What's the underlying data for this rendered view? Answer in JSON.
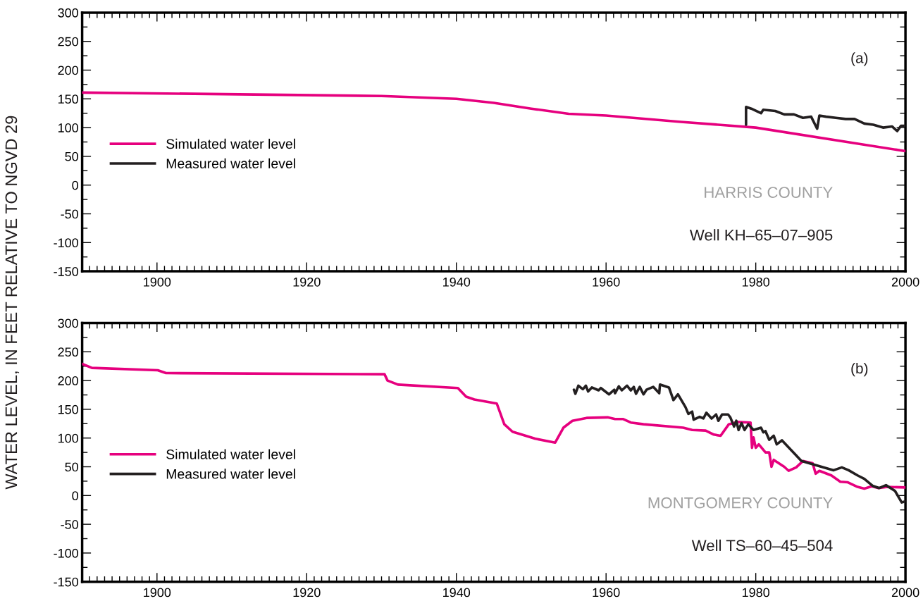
{
  "chart_data": [
    {
      "type": "line",
      "ylabel": "WATER LEVEL, IN FEET RELATIVE TO NGVD 29",
      "xlim": [
        1890,
        2000
      ],
      "xticks": [
        1900,
        1920,
        1940,
        1960,
        1980,
        2000
      ],
      "ylim": [
        -150,
        300
      ],
      "yticks": [
        -150,
        -100,
        -50,
        0,
        50,
        100,
        150,
        200,
        250,
        300
      ],
      "legend": "center left",
      "grid": false,
      "annotations": [
        "(a)",
        "HARRIS COUNTY",
        "Well KH–65–07–905"
      ],
      "series": [
        {
          "name": "Simulated water level",
          "color": "#e6007e",
          "x": [
            1890,
            1930,
            1940,
            1945,
            1950,
            1955,
            1960,
            1970,
            1980,
            2000
          ],
          "values": [
            161,
            155,
            150,
            143,
            133,
            124,
            121,
            110,
            100,
            59
          ]
        },
        {
          "name": "Measured water level",
          "color": "#231f20",
          "x": [
            1978.7,
            1978.7,
            1979.4,
            1980.7,
            1981.0,
            1982.6,
            1983.8,
            1985.1,
            1986.3,
            1987.4,
            1988.2,
            1988.5,
            1989.4,
            1990.7,
            1992.0,
            1993.2,
            1994.5,
            1995.7,
            1997.0,
            1998.2,
            1998.9,
            1999.4,
            2000
          ],
          "values": [
            105,
            136,
            133,
            125,
            131,
            129,
            123,
            123,
            117,
            119,
            98,
            121,
            119,
            117,
            115,
            115,
            107,
            105,
            100,
            102,
            94,
            103,
            103
          ]
        }
      ]
    },
    {
      "type": "line",
      "xlim": [
        1890,
        2000
      ],
      "xticks": [
        1900,
        1920,
        1940,
        1960,
        1980,
        2000
      ],
      "ylim": [
        -150,
        300
      ],
      "yticks": [
        -150,
        -100,
        -50,
        0,
        50,
        100,
        150,
        200,
        250,
        300
      ],
      "legend": "center left",
      "grid": false,
      "annotations": [
        "(b)",
        "MONTGOMERY COUNTY",
        "Well TS–60–45–504"
      ],
      "series": [
        {
          "name": "Simulated water level",
          "color": "#e6007e",
          "x": [
            1890.0,
            1891.3,
            1900.1,
            1901.2,
            1930.4,
            1930.8,
            1932.2,
            1940.2,
            1941.3,
            1942.4,
            1945.4,
            1946.4,
            1947.5,
            1950.5,
            1953.2,
            1954.3,
            1955.5,
            1957.4,
            1960.2,
            1961.2,
            1962.3,
            1963.3,
            1965.0,
            1970.3,
            1971.5,
            1973.3,
            1974.4,
            1975.3,
            1976.4,
            1977.6,
            1979.3,
            1979.5,
            1979.7,
            1980.0,
            1980.4,
            1981.3,
            1981.8,
            1982.1,
            1982.4,
            1983.8,
            1984.4,
            1985.4,
            1986.3,
            1987.6,
            1988.0,
            1988.5,
            1990.1,
            1991.3,
            1992.3,
            1993.6,
            1994.5,
            1995.5,
            1996.4,
            1997.6,
            2000
          ],
          "values": [
            229,
            222,
            218,
            213,
            211,
            200,
            193,
            187,
            172,
            167,
            160,
            124,
            111,
            99,
            92,
            118,
            130,
            135,
            136,
            133,
            133,
            127,
            124,
            118,
            114,
            113,
            106,
            104,
            124,
            128,
            127,
            83,
            101,
            83,
            89,
            75,
            75,
            50,
            62,
            50,
            43,
            49,
            60,
            56,
            38,
            43,
            35,
            24,
            23,
            15,
            12,
            16,
            13,
            15,
            14
          ]
        },
        {
          "name": "Measured water level",
          "color": "#231f20",
          "x": [
            1955.7,
            1955.9,
            1956.3,
            1956.9,
            1957.3,
            1957.6,
            1958.1,
            1959.0,
            1959.3,
            1960.4,
            1961.1,
            1961.2,
            1961.7,
            1962.1,
            1962.8,
            1963.3,
            1963.7,
            1964.0,
            1964.5,
            1965.0,
            1965.4,
            1966.3,
            1967.1,
            1967.2,
            1968.4,
            1969.0,
            1969.6,
            1970.6,
            1971.0,
            1971.5,
            1971.7,
            1972.5,
            1973.0,
            1973.4,
            1974.1,
            1974.7,
            1975.0,
            1975.5,
            1976.3,
            1976.6,
            1977.1,
            1977.4,
            1977.7,
            1978.1,
            1978.5,
            1979.0,
            1979.7,
            1980.7,
            1981.0,
            1981.3,
            1981.8,
            1982.4,
            1982.8,
            1983.5,
            1986.1,
            1990.4,
            1991.5,
            1992.4,
            1993.6,
            1994.5,
            1995.6,
            1996.5,
            1997.4,
            1998.6,
            1999.5,
            2000
          ],
          "values": [
            184,
            177,
            191,
            185,
            191,
            181,
            188,
            183,
            187,
            176,
            184,
            178,
            190,
            183,
            191,
            183,
            189,
            177,
            189,
            176,
            184,
            189,
            178,
            193,
            188,
            166,
            176,
            154,
            142,
            146,
            132,
            137,
            134,
            144,
            134,
            141,
            130,
            141,
            141,
            136,
            120,
            130,
            114,
            126,
            114,
            124,
            114,
            118,
            110,
            112,
            97,
            104,
            89,
            96,
            60,
            44,
            49,
            44,
            35,
            29,
            17,
            13,
            18,
            8,
            -12,
            -10
          ]
        }
      ]
    }
  ]
}
